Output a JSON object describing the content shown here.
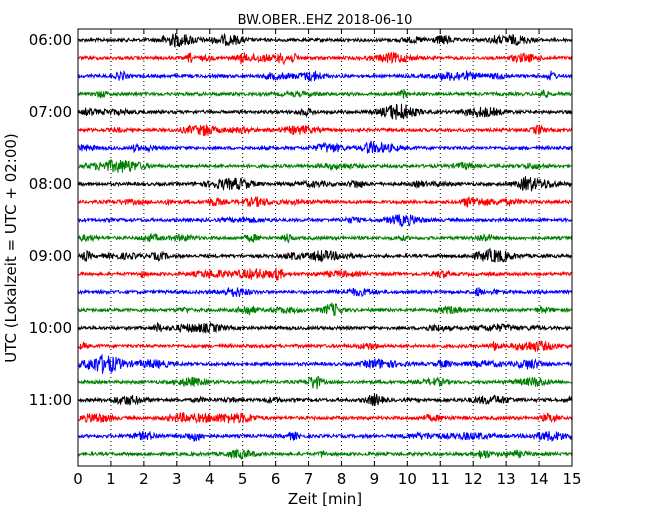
{
  "chart_data": {
    "type": "line",
    "subtype": "helicorder",
    "title": "BW.OBER..EHZ 2018-06-10",
    "xlabel": "Zeit  [min]",
    "ylabel": "UTC (Lokalzeit = UTC + 02:00)",
    "xlim": [
      0,
      15
    ],
    "x_ticks": [
      0,
      1,
      2,
      3,
      4,
      5,
      6,
      7,
      8,
      9,
      10,
      11,
      12,
      13,
      14,
      15
    ],
    "x_tick_labels": [
      "0",
      "1",
      "2",
      "3",
      "4",
      "5",
      "6",
      "7",
      "8",
      "9",
      "10",
      "11",
      "12",
      "13",
      "14",
      "15"
    ],
    "x_grid": true,
    "trace_interval_minutes": 15,
    "start_time": "06:00",
    "y_tick_labels": [
      "06:00",
      "07:00",
      "08:00",
      "09:00",
      "10:00",
      "11:00"
    ],
    "trace_colors": [
      "#000000",
      "#ff0000",
      "#0000ff",
      "#008000"
    ],
    "traces": [
      {
        "start": "06:00",
        "color": "#000000"
      },
      {
        "start": "06:15",
        "color": "#ff0000"
      },
      {
        "start": "06:30",
        "color": "#0000ff"
      },
      {
        "start": "06:45",
        "color": "#008000"
      },
      {
        "start": "07:00",
        "color": "#000000"
      },
      {
        "start": "07:15",
        "color": "#ff0000"
      },
      {
        "start": "07:30",
        "color": "#0000ff"
      },
      {
        "start": "07:45",
        "color": "#008000"
      },
      {
        "start": "08:00",
        "color": "#000000"
      },
      {
        "start": "08:15",
        "color": "#ff0000"
      },
      {
        "start": "08:30",
        "color": "#0000ff"
      },
      {
        "start": "08:45",
        "color": "#008000"
      },
      {
        "start": "09:00",
        "color": "#000000"
      },
      {
        "start": "09:15",
        "color": "#ff0000"
      },
      {
        "start": "09:30",
        "color": "#0000ff"
      },
      {
        "start": "09:45",
        "color": "#008000"
      },
      {
        "start": "10:00",
        "color": "#000000"
      },
      {
        "start": "10:15",
        "color": "#ff0000"
      },
      {
        "start": "10:30",
        "color": "#0000ff"
      },
      {
        "start": "10:45",
        "color": "#008000"
      },
      {
        "start": "11:00",
        "color": "#000000"
      },
      {
        "start": "11:15",
        "color": "#ff0000"
      },
      {
        "start": "11:30",
        "color": "#0000ff"
      },
      {
        "start": "11:45",
        "color": "#008000"
      }
    ]
  }
}
